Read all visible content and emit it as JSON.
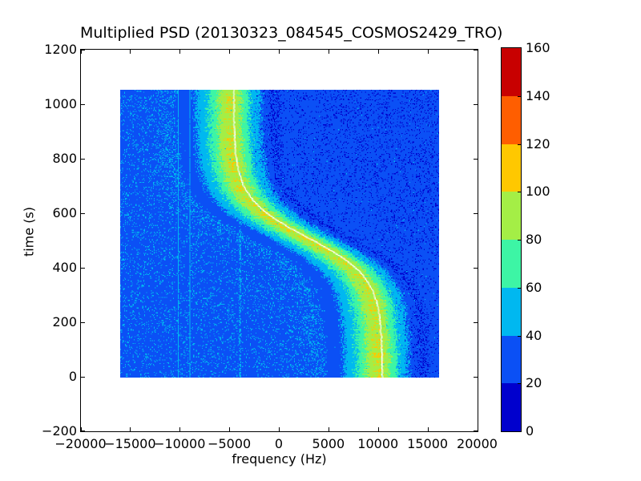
{
  "chart_data": {
    "type": "heatmap",
    "subtype": "spectrogram-psd",
    "title": "Multiplied PSD (20130323_084545_COSMOS2429_TRO)",
    "xlabel": "frequency (Hz)",
    "ylabel": "time (s)",
    "xlim": [
      -20000,
      20000
    ],
    "ylim": [
      -200,
      1200
    ],
    "xticks": [
      -20000,
      -15000,
      -10000,
      -5000,
      0,
      5000,
      10000,
      15000,
      20000
    ],
    "yticks": [
      -200,
      0,
      200,
      400,
      600,
      800,
      1000,
      1200
    ],
    "grid": false,
    "data_extent": {
      "freq_hz": [
        -16000,
        16000
      ],
      "time_s": [
        0,
        1050
      ]
    },
    "colormap": {
      "name": "jet-discrete-8",
      "levels": [
        {
          "range": [
            0,
            20
          ],
          "color": "#0000cd"
        },
        {
          "range": [
            20,
            40
          ],
          "color": "#0b50f5"
        },
        {
          "range": [
            40,
            60
          ],
          "color": "#00b8f0"
        },
        {
          "range": [
            60,
            80
          ],
          "color": "#3df5a5"
        },
        {
          "range": [
            80,
            100
          ],
          "color": "#a4ee46"
        },
        {
          "range": [
            100,
            120
          ],
          "color": "#ffc800"
        },
        {
          "range": [
            120,
            140
          ],
          "color": "#ff5e00"
        },
        {
          "range": [
            140,
            160
          ],
          "color": "#c80000"
        }
      ]
    },
    "colorbar": {
      "position": "right",
      "ticks": [
        0,
        20,
        40,
        60,
        80,
        100,
        120,
        140,
        160
      ],
      "vmin": 0,
      "vmax": 160
    },
    "doppler_track": {
      "description": "S-shaped Doppler curve of satellite pass with white overlay line",
      "model": "f(t) = f_mid - amp * tanh((t - t_mid)/tau)",
      "f_mid_hz": 2850,
      "amp_hz": 7450,
      "t_mid_s": 510,
      "tau_s": 145,
      "line_color": "#ffffff",
      "sample_points": [
        {
          "t_s": 0,
          "f_hz": 10290
        },
        {
          "t_s": 200,
          "f_hz": 10100
        },
        {
          "t_s": 400,
          "f_hz": 7620
        },
        {
          "t_s": 510,
          "f_hz": 2850
        },
        {
          "t_s": 600,
          "f_hz": -1260
        },
        {
          "t_s": 800,
          "f_hz": -4330
        },
        {
          "t_s": 1050,
          "f_hz": -4590
        }
      ]
    },
    "signal_band": {
      "peak_psd": 98,
      "core_sigma_hz": 1150,
      "skirt_sigma_hz": 3000,
      "dark_notch_offset_hz": 4200,
      "peak_offset_hz": -400
    },
    "noise_floor": {
      "left_of_track_psd": 34,
      "right_of_track_psd": 27,
      "right_side_dark_speckles": true
    },
    "interference_lines_hz": [
      -10200,
      -9000,
      -3950
    ]
  }
}
